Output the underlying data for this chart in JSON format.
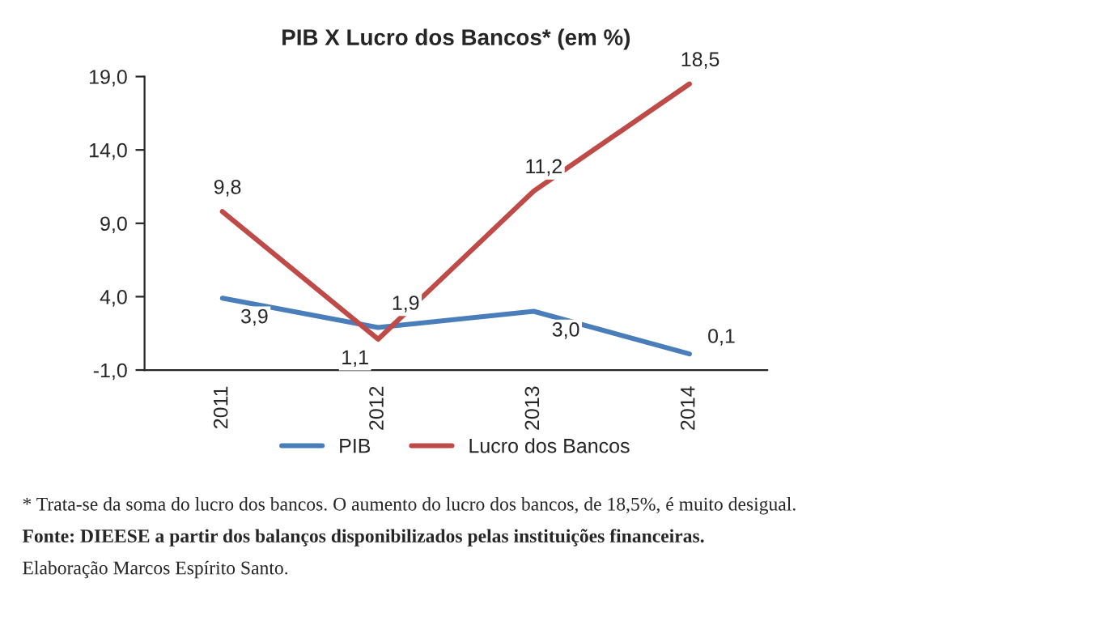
{
  "chart_data": {
    "type": "line",
    "title": "PIB X Lucro dos Bancos* (em %)",
    "categories": [
      "2011",
      "2012",
      "2013",
      "2014"
    ],
    "series": [
      {
        "name": "PIB",
        "color": "#4a7ebb",
        "values": [
          3.9,
          1.9,
          3.0,
          0.1
        ],
        "value_labels": [
          "3,9",
          "1,9",
          "3,0",
          "0,1"
        ]
      },
      {
        "name": "Lucro dos Bancos",
        "color": "#be4b48",
        "values": [
          9.8,
          1.1,
          11.2,
          18.5
        ],
        "value_labels": [
          "9,8",
          "1,1",
          "11,2",
          "18,5"
        ]
      }
    ],
    "ylim": [
      -1,
      19
    ],
    "yticks": [
      {
        "value": -1,
        "label": "-1,0"
      },
      {
        "value": 4,
        "label": "4,0"
      },
      {
        "value": 9,
        "label": "9,0"
      },
      {
        "value": 14,
        "label": "14,0"
      },
      {
        "value": 19,
        "label": "19,0"
      }
    ],
    "grid": false,
    "legend": "bottom",
    "marker": "none",
    "line_style": "solid",
    "annotations": [
      "* Trata-se da soma do lucro dos bancos. O aumento do lucro dos bancos, de 18,5%, é muito desigual.",
      "Fonte: DIEESE a partir dos balanços disponibilizados pelas instituições financeiras.",
      "Elaboração Marcos Espírito Santo."
    ]
  }
}
